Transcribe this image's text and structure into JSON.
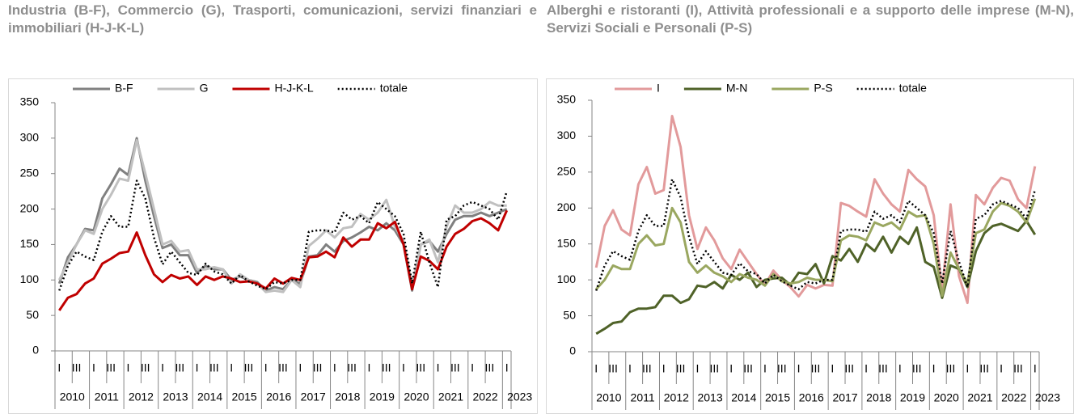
{
  "chart_data": [
    {
      "type": "line",
      "title": "Industria (B-F), Commercio (G), Trasporti, comunicazioni, servizi finanziari e immobiliari (H-J-K-L)",
      "categories": [
        "I",
        null,
        "III",
        null,
        "I",
        null,
        "III",
        null,
        "I",
        null,
        "III",
        null,
        "I",
        null,
        "III",
        null,
        "I",
        null,
        "III",
        null,
        "I",
        null,
        "III",
        null,
        "I",
        null,
        "III",
        null,
        "I",
        null,
        "III",
        null,
        "I",
        null,
        "III",
        null,
        "I",
        null,
        "III",
        null,
        "I",
        null,
        "III",
        null,
        "I",
        null,
        "III",
        null,
        "I",
        null,
        "III",
        null,
        "I"
      ],
      "years": [
        "2010",
        "2011",
        "2012",
        "2013",
        "2014",
        "2015",
        "2016",
        "2017",
        "2018",
        "2019",
        "2020",
        "2021",
        "2022",
        "2023"
      ],
      "ylim": [
        0,
        350
      ],
      "yticks": [
        0,
        50,
        100,
        150,
        200,
        250,
        300,
        350
      ],
      "grid": false,
      "legend": "top",
      "series": [
        {
          "name": "B-F",
          "color": "#808080",
          "style": "solid",
          "values": [
            95,
            132,
            150,
            172,
            170,
            215,
            235,
            257,
            248,
            300,
            240,
            190,
            145,
            150,
            135,
            135,
            110,
            120,
            115,
            115,
            100,
            105,
            100,
            97,
            85,
            90,
            87,
            100,
            95,
            133,
            135,
            150,
            140,
            155,
            160,
            167,
            175,
            170,
            180,
            170,
            150,
            85,
            150,
            155,
            140,
            165,
            185,
            190,
            190,
            195,
            190,
            195,
            200
          ]
        },
        {
          "name": "G",
          "color": "#c0c0c0",
          "style": "solid",
          "values": [
            100,
            125,
            150,
            170,
            165,
            200,
            220,
            243,
            240,
            297,
            250,
            200,
            150,
            155,
            140,
            142,
            115,
            115,
            118,
            115,
            95,
            108,
            100,
            95,
            83,
            85,
            83,
            100,
            90,
            148,
            158,
            170,
            160,
            173,
            175,
            193,
            185,
            195,
            213,
            175,
            155,
            90,
            150,
            157,
            125,
            175,
            205,
            195,
            195,
            200,
            210,
            205,
            205
          ]
        },
        {
          "name": "H-J-K-L",
          "color": "#c00000",
          "style": "solid",
          "values": [
            57,
            75,
            80,
            95,
            102,
            123,
            130,
            138,
            140,
            167,
            135,
            108,
            97,
            107,
            102,
            105,
            93,
            105,
            100,
            105,
            102,
            97,
            98,
            95,
            88,
            102,
            95,
            103,
            100,
            132,
            133,
            140,
            132,
            160,
            147,
            157,
            157,
            180,
            173,
            182,
            150,
            87,
            133,
            127,
            115,
            147,
            165,
            172,
            183,
            187,
            180,
            170,
            198
          ]
        },
        {
          "name": "totale",
          "color": "#000000",
          "style": "dotted",
          "values": [
            85,
            120,
            140,
            133,
            128,
            168,
            190,
            175,
            175,
            240,
            215,
            160,
            122,
            140,
            125,
            110,
            107,
            123,
            112,
            108,
            95,
            107,
            98,
            92,
            87,
            97,
            95,
            100,
            100,
            168,
            170,
            170,
            167,
            195,
            185,
            190,
            180,
            210,
            200,
            190,
            165,
            95,
            168,
            125,
            90,
            185,
            190,
            205,
            210,
            205,
            200,
            185,
            225
          ]
        }
      ]
    },
    {
      "type": "line",
      "title": "Alberghi e ristoranti (I), Attività professionali e a supporto delle imprese (M-N), Servizi Sociali e Personali (P-S)",
      "categories": [
        "I",
        null,
        "III",
        null,
        "I",
        null,
        "III",
        null,
        "I",
        null,
        "III",
        null,
        "I",
        null,
        "III",
        null,
        "I",
        null,
        "III",
        null,
        "I",
        null,
        "III",
        null,
        "I",
        null,
        "III",
        null,
        "I",
        null,
        "III",
        null,
        "I",
        null,
        "III",
        null,
        "I",
        null,
        "III",
        null,
        "I",
        null,
        "III",
        null,
        "I",
        null,
        "III",
        null,
        "I",
        null,
        "III",
        null,
        "I"
      ],
      "years": [
        "2010",
        "2011",
        "2012",
        "2013",
        "2014",
        "2015",
        "2016",
        "2017",
        "2018",
        "2019",
        "2020",
        "2021",
        "2022",
        "2023"
      ],
      "ylim": [
        0,
        350
      ],
      "yticks": [
        0,
        50,
        100,
        150,
        200,
        250,
        300,
        350
      ],
      "grid": false,
      "legend": "top",
      "series": [
        {
          "name": "I",
          "color": "#e29a9b",
          "style": "solid",
          "values": [
            117,
            175,
            197,
            170,
            162,
            233,
            257,
            220,
            225,
            328,
            285,
            190,
            143,
            173,
            155,
            130,
            115,
            142,
            125,
            108,
            93,
            113,
            100,
            90,
            77,
            93,
            88,
            93,
            92,
            207,
            203,
            195,
            188,
            240,
            220,
            205,
            195,
            253,
            240,
            230,
            190,
            85,
            205,
            105,
            68,
            218,
            205,
            228,
            242,
            238,
            212,
            200,
            258
          ]
        },
        {
          "name": "M-N",
          "color": "#4f6228",
          "style": "solid",
          "values": [
            25,
            32,
            40,
            42,
            55,
            60,
            60,
            62,
            78,
            78,
            68,
            73,
            92,
            90,
            97,
            88,
            107,
            100,
            110,
            90,
            100,
            102,
            103,
            93,
            110,
            108,
            122,
            95,
            133,
            127,
            143,
            125,
            150,
            140,
            160,
            138,
            160,
            150,
            173,
            125,
            118,
            75,
            120,
            115,
            90,
            140,
            165,
            175,
            178,
            173,
            168,
            182,
            163
          ]
        },
        {
          "name": "P-S",
          "color": "#9aa760",
          "style": "solid",
          "values": [
            87,
            100,
            120,
            115,
            115,
            150,
            162,
            148,
            150,
            200,
            180,
            125,
            110,
            120,
            110,
            105,
            97,
            108,
            103,
            100,
            92,
            108,
            98,
            95,
            97,
            103,
            100,
            100,
            98,
            155,
            162,
            160,
            155,
            180,
            175,
            180,
            170,
            195,
            188,
            190,
            150,
            78,
            138,
            115,
            95,
            165,
            170,
            195,
            207,
            203,
            195,
            180,
            213
          ]
        },
        {
          "name": "totale",
          "color": "#000000",
          "style": "dotted",
          "values": [
            85,
            120,
            140,
            133,
            128,
            168,
            190,
            175,
            175,
            240,
            215,
            160,
            122,
            140,
            125,
            110,
            107,
            123,
            112,
            108,
            95,
            107,
            98,
            92,
            87,
            97,
            95,
            100,
            100,
            168,
            170,
            170,
            167,
            195,
            185,
            190,
            180,
            210,
            200,
            190,
            165,
            95,
            168,
            125,
            90,
            185,
            190,
            205,
            210,
            205,
            200,
            185,
            225
          ]
        }
      ]
    }
  ]
}
